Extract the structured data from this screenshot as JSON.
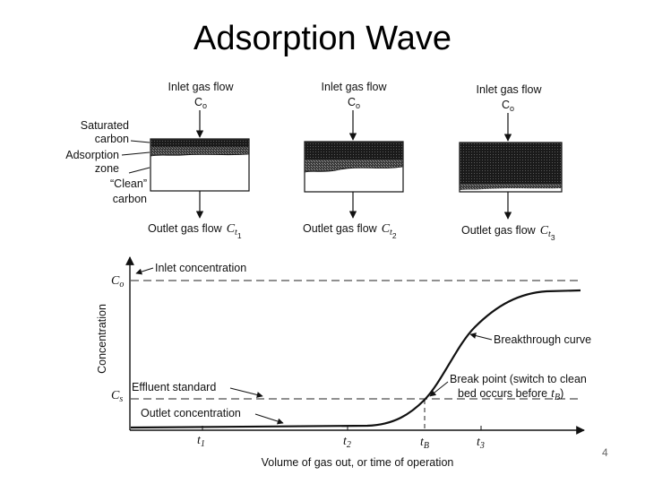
{
  "title": "Adsorption Wave",
  "page_number": "4",
  "beds": [
    {
      "inlet_label": "Inlet gas flow",
      "inlet_sym": "C",
      "inlet_sub": "o",
      "outlet_label": "Outlet gas flow",
      "outlet_sym": "C",
      "outlet_sub": "t",
      "outlet_subsub": "1"
    },
    {
      "inlet_label": "Inlet gas flow",
      "inlet_sym": "C",
      "inlet_sub": "o",
      "outlet_label": "Outlet gas flow",
      "outlet_sym": "C",
      "outlet_sub": "t",
      "outlet_subsub": "2"
    },
    {
      "inlet_label": "Inlet gas flow",
      "inlet_sym": "C",
      "inlet_sub": "o",
      "outlet_label": "Outlet gas flow",
      "outlet_sym": "C",
      "outlet_sub": "t",
      "outlet_subsub": "3"
    }
  ],
  "zone_labels": {
    "saturated_1": "Saturated",
    "saturated_2": "carbon",
    "adsorption_1": "Adsorption",
    "adsorption_2": "zone",
    "clean_1": "“Clean”",
    "clean_2": "carbon"
  },
  "graph": {
    "y_axis_label": "Concentration",
    "x_axis_label": "Volume of gas out, or time of operation",
    "co_sym": "C",
    "co_sub": "o",
    "cs_sym": "C",
    "cs_sub": "s",
    "inlet_concentration": "Inlet concentration",
    "effluent_standard": "Effluent standard",
    "outlet_concentration": "Outlet concentration",
    "breakthrough_curve": "Breakthrough curve",
    "break_point_1": "Break point (switch to clean",
    "break_point_2": "bed occurs before",
    "break_point_tb": "t",
    "break_point_tb_sub": "B",
    "break_point_close": ")",
    "ticks": [
      {
        "sym": "t",
        "sub": "1"
      },
      {
        "sym": "t",
        "sub": "2"
      },
      {
        "sym": "t",
        "sub": "B"
      },
      {
        "sym": "t",
        "sub": "3"
      }
    ]
  }
}
